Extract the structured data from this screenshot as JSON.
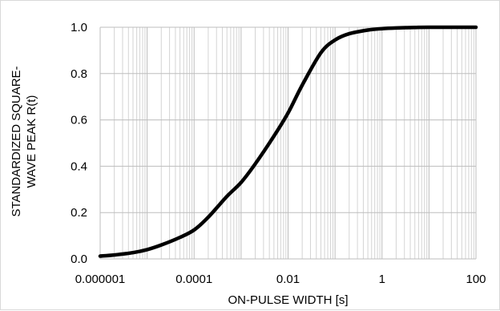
{
  "chart_data": {
    "type": "line",
    "xscale": "log",
    "xlim": [
      1e-06,
      100
    ],
    "ylim": [
      0.0,
      1.0
    ],
    "xlabel": "ON-PULSE WIDTH  [s]",
    "ylabel_lines": [
      "STANDARDIZED SQUARE-",
      "WAVE PEAK R(t)"
    ],
    "xticks": [
      {
        "value": 1e-06,
        "label": "0.000001"
      },
      {
        "value": 0.0001,
        "label": "0.0001"
      },
      {
        "value": 0.01,
        "label": "0.01"
      },
      {
        "value": 1,
        "label": "1"
      },
      {
        "value": 100,
        "label": "100"
      }
    ],
    "yticks": [
      {
        "value": 0.0,
        "label": "0.0"
      },
      {
        "value": 0.2,
        "label": "0.2"
      },
      {
        "value": 0.4,
        "label": "0.4"
      },
      {
        "value": 0.6,
        "label": "0.6"
      },
      {
        "value": 0.8,
        "label": "0.8"
      },
      {
        "value": 1.0,
        "label": "1.0"
      }
    ],
    "grid": true,
    "series": [
      {
        "color": "#000000",
        "x": [
          1e-06,
          2e-06,
          5e-06,
          1e-05,
          2e-05,
          5e-05,
          0.0001,
          0.0002,
          0.0005,
          0.001,
          0.002,
          0.005,
          0.01,
          0.02,
          0.05,
          0.1,
          0.2,
          0.5,
          1,
          2,
          5,
          10,
          100
        ],
        "y": [
          0.012,
          0.017,
          0.027,
          0.04,
          0.06,
          0.093,
          0.125,
          0.18,
          0.27,
          0.33,
          0.41,
          0.53,
          0.63,
          0.75,
          0.89,
          0.945,
          0.972,
          0.988,
          0.994,
          0.997,
          0.999,
          1.0,
          1.0
        ]
      }
    ]
  }
}
